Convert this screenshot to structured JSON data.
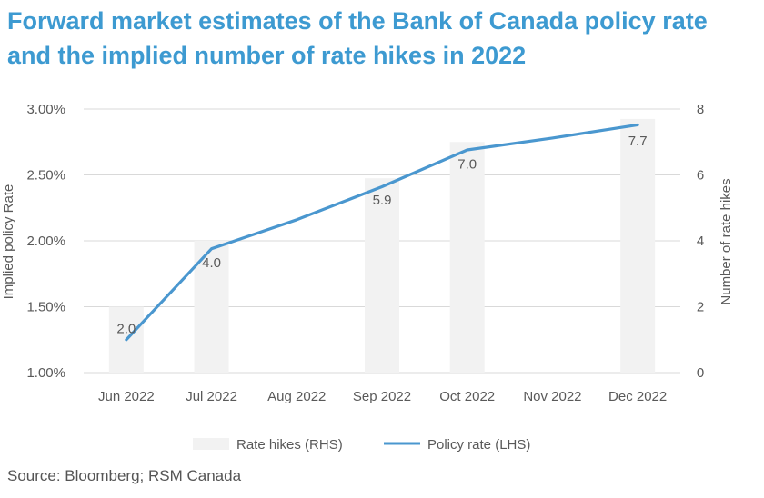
{
  "title_line1": "Forward market estimates of the Bank of Canada policy rate",
  "title_line2": "and the implied number of rate hikes in 2022",
  "source": "Source: Bloomberg; RSM Canada",
  "colors": {
    "title": "#3d9ad1",
    "line": "#4a97cf",
    "bar": "#f2f2f2",
    "grid": "#d9d9d9",
    "text": "#595959"
  },
  "chart_data": {
    "type": "bar+line",
    "categories": [
      "Jun 2022",
      "Jul 2022",
      "Aug 2022",
      "Sep 2022",
      "Oct 2022",
      "Nov 2022",
      "Dec 2022"
    ],
    "series": [
      {
        "name": "Rate hikes (RHS)",
        "type": "bar",
        "axis": "right",
        "values": [
          2.0,
          4.0,
          null,
          5.9,
          7.0,
          null,
          7.7
        ],
        "labels": [
          "2.0",
          "4.0",
          "",
          "5.9",
          "7.0",
          "",
          "7.7"
        ]
      },
      {
        "name": "Policy rate (LHS)",
        "type": "line",
        "axis": "left",
        "values": [
          1.25,
          1.94,
          2.16,
          2.41,
          2.69,
          2.78,
          2.88
        ]
      }
    ],
    "y_left": {
      "label": "Implied policy Rate",
      "lim": [
        1.0,
        3.0
      ],
      "ticks": [
        "1.00%",
        "1.50%",
        "2.00%",
        "2.50%",
        "3.00%"
      ],
      "tick_values": [
        1.0,
        1.5,
        2.0,
        2.5,
        3.0
      ]
    },
    "y_right": {
      "label": "Number of rate hikes",
      "lim": [
        0,
        8
      ],
      "ticks": [
        "0",
        "2",
        "4",
        "6",
        "8"
      ],
      "tick_values": [
        0,
        2,
        4,
        6,
        8
      ]
    },
    "grid": true,
    "legend_position": "bottom"
  }
}
